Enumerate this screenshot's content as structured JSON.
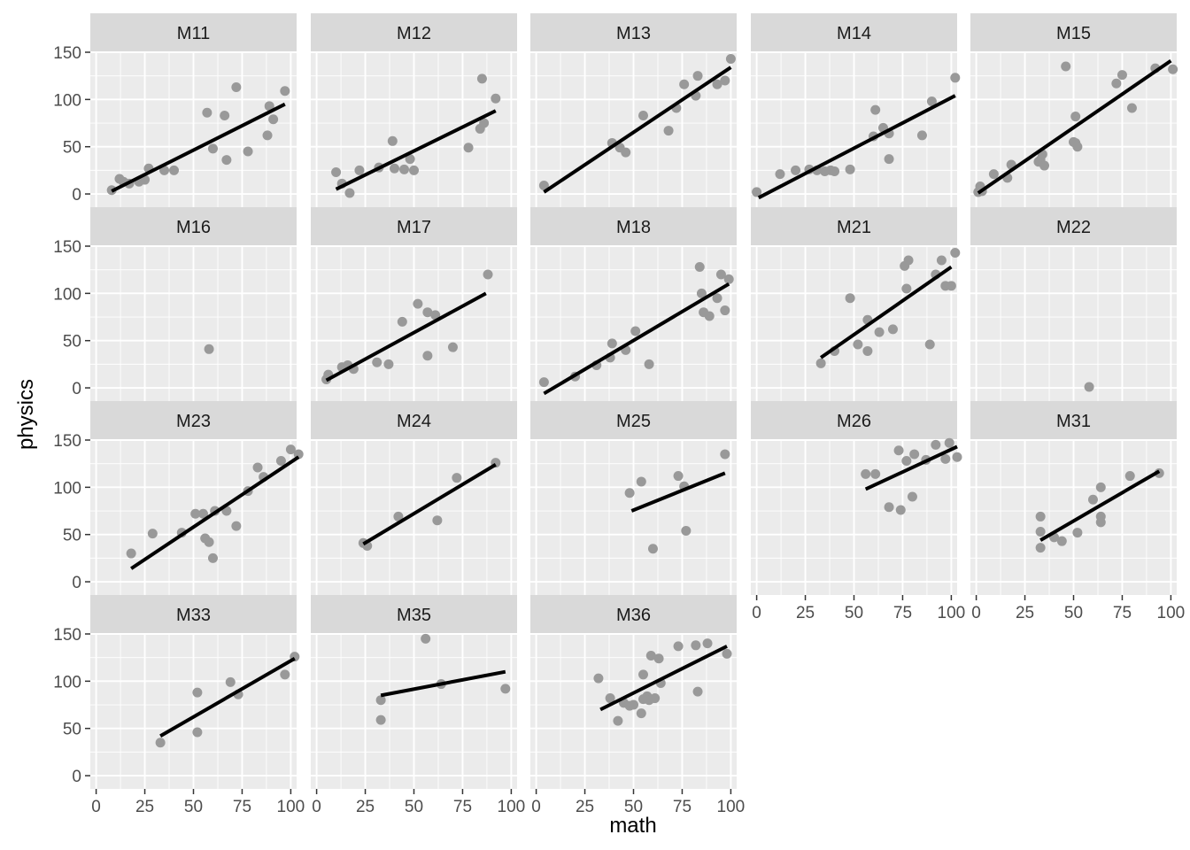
{
  "chart_data": {
    "type": "scatter",
    "xlabel": "math",
    "ylabel": "physics",
    "xlim": [
      -3,
      103
    ],
    "ylim": [
      -14,
      150
    ],
    "x_ticks": [
      0,
      25,
      50,
      75,
      100
    ],
    "y_ticks": [
      0,
      50,
      100,
      150
    ],
    "grid": true,
    "colors": {
      "panel_bg": "#EBEBEB",
      "strip_bg": "#D9D9D9",
      "grid_major": "#FFFFFF",
      "point": "#999999",
      "line": "#000000"
    },
    "panels": [
      {
        "name": "M11",
        "points": [
          [
            8,
            4
          ],
          [
            12,
            16
          ],
          [
            14,
            13
          ],
          [
            17,
            11
          ],
          [
            22,
            13
          ],
          [
            25,
            15
          ],
          [
            27,
            27
          ],
          [
            35,
            25
          ],
          [
            40,
            25
          ],
          [
            57,
            86
          ],
          [
            60,
            48
          ],
          [
            66,
            83
          ],
          [
            67,
            36
          ],
          [
            72,
            113
          ],
          [
            78,
            45
          ],
          [
            88,
            62
          ],
          [
            89,
            93
          ],
          [
            91,
            79
          ],
          [
            97,
            109
          ]
        ],
        "fit": [
          [
            8,
            3
          ],
          [
            97,
            95
          ]
        ]
      },
      {
        "name": "M12",
        "points": [
          [
            10,
            23
          ],
          [
            13,
            11
          ],
          [
            17,
            1
          ],
          [
            22,
            25
          ],
          [
            32,
            28
          ],
          [
            39,
            56
          ],
          [
            40,
            27
          ],
          [
            45,
            26
          ],
          [
            48,
            37
          ],
          [
            50,
            25
          ],
          [
            78,
            49
          ],
          [
            84,
            69
          ],
          [
            85,
            122
          ],
          [
            86,
            75
          ],
          [
            92,
            101
          ]
        ],
        "fit": [
          [
            10,
            5
          ],
          [
            92,
            88
          ]
        ]
      },
      {
        "name": "M13",
        "points": [
          [
            4,
            9
          ],
          [
            39,
            54
          ],
          [
            43,
            49
          ],
          [
            46,
            44
          ],
          [
            55,
            83
          ],
          [
            68,
            67
          ],
          [
            72,
            91
          ],
          [
            76,
            116
          ],
          [
            82,
            104
          ],
          [
            83,
            125
          ],
          [
            93,
            116
          ],
          [
            97,
            120
          ],
          [
            100,
            143
          ]
        ],
        "fit": [
          [
            4,
            2
          ],
          [
            100,
            134
          ]
        ]
      },
      {
        "name": "M14",
        "points": [
          [
            0,
            2
          ],
          [
            12,
            21
          ],
          [
            20,
            25
          ],
          [
            27,
            26
          ],
          [
            31,
            25
          ],
          [
            35,
            24
          ],
          [
            38,
            25
          ],
          [
            40,
            24
          ],
          [
            48,
            26
          ],
          [
            60,
            61
          ],
          [
            61,
            89
          ],
          [
            65,
            70
          ],
          [
            68,
            64
          ],
          [
            68,
            37
          ],
          [
            85,
            62
          ],
          [
            90,
            98
          ],
          [
            102,
            123
          ]
        ],
        "fit": [
          [
            1,
            -4
          ],
          [
            102,
            104
          ]
        ]
      },
      {
        "name": "M15",
        "points": [
          [
            1,
            2
          ],
          [
            2,
            8
          ],
          [
            3,
            3
          ],
          [
            9,
            21
          ],
          [
            16,
            17
          ],
          [
            18,
            31
          ],
          [
            32,
            34
          ],
          [
            33,
            36
          ],
          [
            34,
            42
          ],
          [
            35,
            30
          ],
          [
            46,
            135
          ],
          [
            50,
            55
          ],
          [
            51,
            82
          ],
          [
            51,
            54
          ],
          [
            52,
            50
          ],
          [
            72,
            117
          ],
          [
            75,
            126
          ],
          [
            80,
            91
          ],
          [
            92,
            133
          ],
          [
            101,
            132
          ]
        ],
        "fit": [
          [
            1,
            1
          ],
          [
            100,
            141
          ]
        ]
      },
      {
        "name": "M16",
        "points": [
          [
            58,
            41
          ]
        ],
        "fit": null
      },
      {
        "name": "M17",
        "points": [
          [
            5,
            9
          ],
          [
            6,
            14
          ],
          [
            13,
            22
          ],
          [
            16,
            24
          ],
          [
            19,
            20
          ],
          [
            31,
            27
          ],
          [
            37,
            25
          ],
          [
            44,
            70
          ],
          [
            52,
            89
          ],
          [
            57,
            34
          ],
          [
            57,
            80
          ],
          [
            61,
            77
          ],
          [
            70,
            43
          ],
          [
            88,
            120
          ]
        ],
        "fit": [
          [
            5,
            8
          ],
          [
            87,
            100
          ]
        ]
      },
      {
        "name": "M18",
        "points": [
          [
            4,
            6
          ],
          [
            20,
            12
          ],
          [
            31,
            24
          ],
          [
            38,
            32
          ],
          [
            39,
            47
          ],
          [
            46,
            40
          ],
          [
            51,
            60
          ],
          [
            58,
            25
          ],
          [
            84,
            128
          ],
          [
            85,
            100
          ],
          [
            86,
            80
          ],
          [
            89,
            76
          ],
          [
            93,
            95
          ],
          [
            95,
            120
          ],
          [
            97,
            82
          ],
          [
            99,
            115
          ]
        ],
        "fit": [
          [
            4,
            -6
          ],
          [
            99,
            110
          ]
        ]
      },
      {
        "name": "M21",
        "points": [
          [
            33,
            26
          ],
          [
            40,
            39
          ],
          [
            48,
            95
          ],
          [
            52,
            46
          ],
          [
            57,
            72
          ],
          [
            57,
            39
          ],
          [
            63,
            59
          ],
          [
            70,
            62
          ],
          [
            76,
            129
          ],
          [
            77,
            105
          ],
          [
            78,
            135
          ],
          [
            89,
            46
          ],
          [
            92,
            120
          ],
          [
            95,
            135
          ],
          [
            97,
            108
          ],
          [
            100,
            108
          ],
          [
            102,
            143
          ]
        ],
        "fit": [
          [
            33,
            32
          ],
          [
            100,
            128
          ]
        ]
      },
      {
        "name": "M22",
        "points": [
          [
            58,
            1
          ]
        ],
        "fit": null
      },
      {
        "name": "M23",
        "points": [
          [
            18,
            30
          ],
          [
            29,
            51
          ],
          [
            44,
            52
          ],
          [
            51,
            72
          ],
          [
            55,
            72
          ],
          [
            56,
            46
          ],
          [
            58,
            42
          ],
          [
            60,
            25
          ],
          [
            61,
            75
          ],
          [
            67,
            75
          ],
          [
            72,
            59
          ],
          [
            78,
            96
          ],
          [
            83,
            121
          ],
          [
            86,
            111
          ],
          [
            95,
            128
          ],
          [
            100,
            140
          ],
          [
            104,
            135
          ]
        ],
        "fit": [
          [
            18,
            14
          ],
          [
            104,
            132
          ]
        ]
      },
      {
        "name": "M24",
        "points": [
          [
            24,
            41
          ],
          [
            26,
            38
          ],
          [
            42,
            69
          ],
          [
            62,
            65
          ],
          [
            72,
            110
          ],
          [
            92,
            126
          ]
        ],
        "fit": [
          [
            24,
            40
          ],
          [
            92,
            124
          ]
        ]
      },
      {
        "name": "M25",
        "points": [
          [
            48,
            94
          ],
          [
            54,
            106
          ],
          [
            60,
            35
          ],
          [
            73,
            112
          ],
          [
            76,
            101
          ],
          [
            77,
            54
          ],
          [
            97,
            135
          ]
        ],
        "fit": [
          [
            49,
            75
          ],
          [
            97,
            115
          ]
        ]
      },
      {
        "name": "M26",
        "points": [
          [
            56,
            114
          ],
          [
            61,
            114
          ],
          [
            68,
            79
          ],
          [
            73,
            139
          ],
          [
            74,
            76
          ],
          [
            77,
            128
          ],
          [
            80,
            90
          ],
          [
            81,
            135
          ],
          [
            87,
            129
          ],
          [
            92,
            145
          ],
          [
            97,
            130
          ],
          [
            99,
            147
          ],
          [
            103,
            132
          ]
        ],
        "fit": [
          [
            56,
            98
          ],
          [
            103,
            143
          ]
        ]
      },
      {
        "name": "M31",
        "points": [
          [
            33,
            69
          ],
          [
            33,
            53
          ],
          [
            33,
            36
          ],
          [
            40,
            47
          ],
          [
            44,
            43
          ],
          [
            52,
            52
          ],
          [
            60,
            87
          ],
          [
            64,
            100
          ],
          [
            64,
            69
          ],
          [
            64,
            63
          ],
          [
            79,
            112
          ],
          [
            94,
            115
          ]
        ],
        "fit": [
          [
            33,
            44
          ],
          [
            94,
            117
          ]
        ]
      },
      {
        "name": "M33",
        "points": [
          [
            33,
            35
          ],
          [
            52,
            88
          ],
          [
            52,
            46
          ],
          [
            69,
            99
          ],
          [
            73,
            86
          ],
          [
            97,
            107
          ],
          [
            102,
            126
          ]
        ],
        "fit": [
          [
            33,
            42
          ],
          [
            102,
            124
          ]
        ]
      },
      {
        "name": "M35",
        "points": [
          [
            33,
            80
          ],
          [
            33,
            59
          ],
          [
            56,
            145
          ],
          [
            64,
            97
          ],
          [
            97,
            92
          ]
        ],
        "fit": [
          [
            33,
            85
          ],
          [
            97,
            110
          ]
        ]
      },
      {
        "name": "M36",
        "points": [
          [
            32,
            103
          ],
          [
            38,
            82
          ],
          [
            42,
            58
          ],
          [
            45,
            77
          ],
          [
            48,
            74
          ],
          [
            50,
            75
          ],
          [
            54,
            66
          ],
          [
            55,
            107
          ],
          [
            55,
            81
          ],
          [
            57,
            84
          ],
          [
            58,
            80
          ],
          [
            59,
            127
          ],
          [
            61,
            82
          ],
          [
            63,
            124
          ],
          [
            64,
            98
          ],
          [
            73,
            137
          ],
          [
            82,
            138
          ],
          [
            83,
            89
          ],
          [
            88,
            140
          ],
          [
            98,
            129
          ]
        ],
        "fit": [
          [
            33,
            70
          ],
          [
            98,
            137
          ]
        ]
      }
    ]
  }
}
